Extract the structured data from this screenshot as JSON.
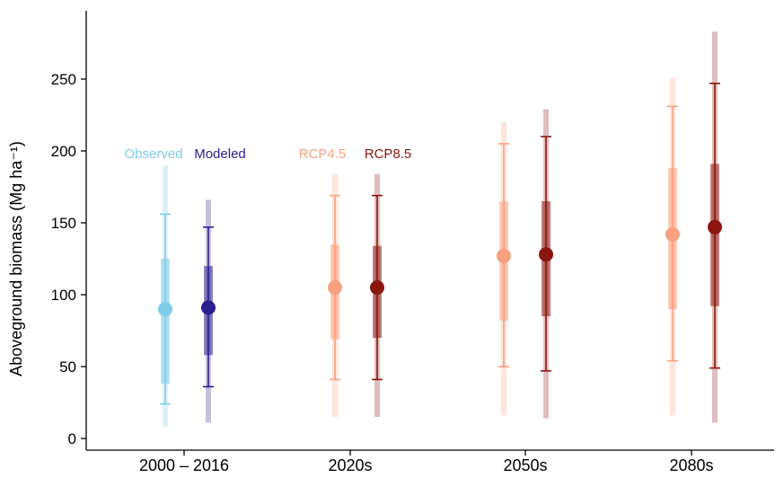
{
  "chart_data": {
    "type": "scatter",
    "subtype": "interval-point",
    "ylabel": "Aboveground biomass (Mg ha⁻¹)",
    "ylim": [
      0,
      290
    ],
    "yticks": [
      0,
      50,
      100,
      150,
      200,
      250
    ],
    "categories": [
      "2000 – 2016",
      "2020s",
      "2050s",
      "2080s"
    ],
    "legend_labels": [
      {
        "text": "Observed",
        "color": "#7ecde8"
      },
      {
        "text": "Modeled",
        "color": "#2a1f8f"
      },
      {
        "text": "RCP4.5",
        "color": "#f9a07f"
      },
      {
        "text": "RCP8.5",
        "color": "#8b1610"
      }
    ],
    "series": [
      {
        "category": "2000 – 2016",
        "name": "Observed",
        "color": "#7ecde8",
        "outer": [
          8,
          190
        ],
        "whisker": [
          24,
          156
        ],
        "box": [
          38,
          125
        ],
        "mean": 90
      },
      {
        "category": "2000 – 2016",
        "name": "Modeled",
        "color": "#2a1f8f",
        "outer": [
          11,
          166
        ],
        "whisker": [
          36,
          147
        ],
        "box": [
          58,
          120
        ],
        "mean": 91
      },
      {
        "category": "2020s",
        "name": "RCP4.5",
        "color": "#f9a07f",
        "outer": [
          15,
          184
        ],
        "whisker": [
          41,
          169
        ],
        "box": [
          69,
          135
        ],
        "mean": 105
      },
      {
        "category": "2020s",
        "name": "RCP8.5",
        "color": "#8b1610",
        "outer": [
          15,
          184
        ],
        "whisker": [
          41,
          169
        ],
        "box": [
          70,
          134
        ],
        "mean": 105
      },
      {
        "category": "2050s",
        "name": "RCP4.5",
        "color": "#f9a07f",
        "outer": [
          16,
          220
        ],
        "whisker": [
          50,
          205
        ],
        "box": [
          82,
          165
        ],
        "mean": 127
      },
      {
        "category": "2050s",
        "name": "RCP8.5",
        "color": "#8b1610",
        "outer": [
          14,
          229
        ],
        "whisker": [
          47,
          210
        ],
        "box": [
          85,
          165
        ],
        "mean": 128
      },
      {
        "category": "2080s",
        "name": "RCP4.5",
        "color": "#f9a07f",
        "outer": [
          16,
          251
        ],
        "whisker": [
          54,
          231
        ],
        "box": [
          90,
          188
        ],
        "mean": 142
      },
      {
        "category": "2080s",
        "name": "RCP8.5",
        "color": "#8b1610",
        "outer": [
          11,
          283
        ],
        "whisker": [
          49,
          247
        ],
        "box": [
          92,
          191
        ],
        "mean": 147
      }
    ]
  }
}
